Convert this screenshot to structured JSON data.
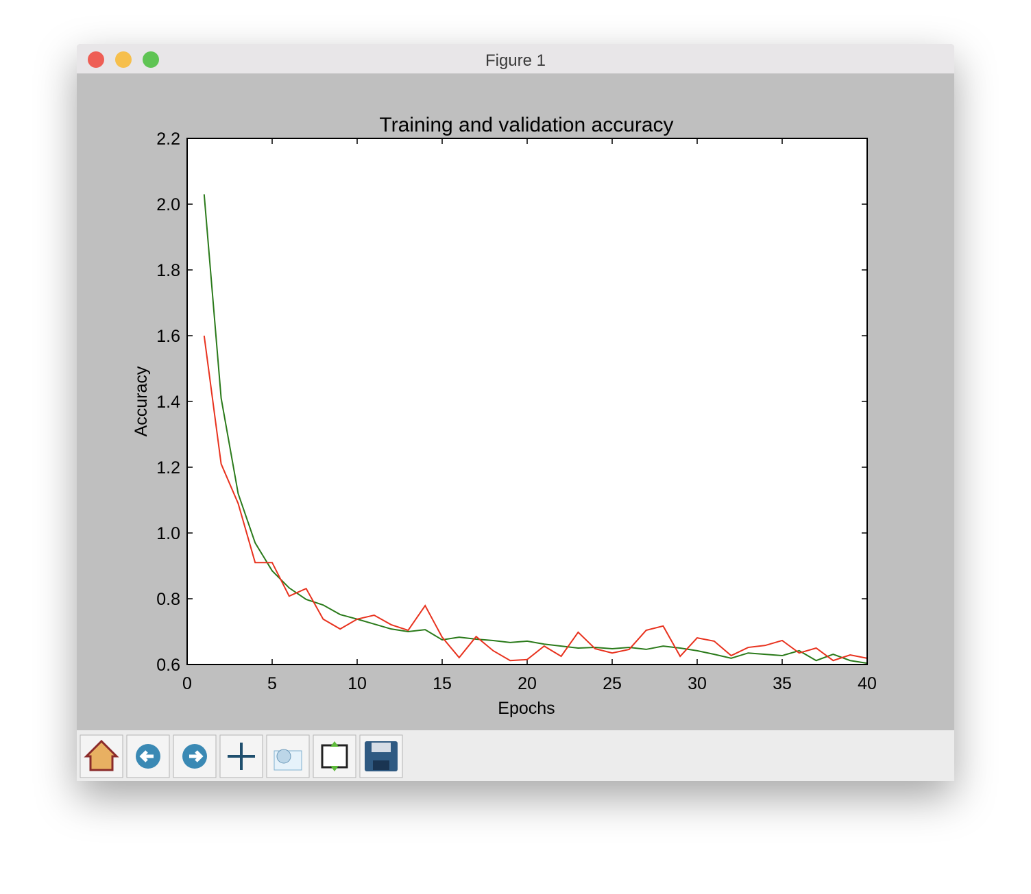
{
  "window": {
    "title": "Figure 1"
  },
  "chart_data": {
    "type": "line",
    "title": "Training and validation accuracy",
    "x_label": "Epochs",
    "y_label": "Accuracy",
    "x": [
      1,
      2,
      3,
      4,
      5,
      6,
      7,
      8,
      9,
      10,
      11,
      12,
      13,
      14,
      15,
      16,
      17,
      18,
      19,
      20,
      21,
      22,
      23,
      24,
      25,
      26,
      27,
      28,
      29,
      30,
      31,
      32,
      33,
      34,
      35,
      36,
      37,
      38,
      39,
      40
    ],
    "series": [
      {
        "color": "#2a7a1a",
        "values": [
          2.03,
          1.41,
          1.12,
          0.97,
          0.885,
          0.833,
          0.798,
          0.781,
          0.752,
          0.738,
          0.723,
          0.708,
          0.7,
          0.706,
          0.675,
          0.683,
          0.677,
          0.673,
          0.667,
          0.671,
          0.662,
          0.656,
          0.65,
          0.652,
          0.648,
          0.652,
          0.646,
          0.656,
          0.65,
          0.642,
          0.631,
          0.619,
          0.635,
          0.631,
          0.627,
          0.642,
          0.612,
          0.631,
          0.612,
          0.604
        ]
      },
      {
        "color": "#e8321e",
        "values": [
          1.6,
          1.21,
          1.09,
          0.91,
          0.91,
          0.808,
          0.831,
          0.738,
          0.708,
          0.738,
          0.75,
          0.721,
          0.704,
          0.779,
          0.683,
          0.621,
          0.685,
          0.642,
          0.612,
          0.615,
          0.656,
          0.625,
          0.698,
          0.648,
          0.635,
          0.646,
          0.704,
          0.717,
          0.625,
          0.681,
          0.671,
          0.627,
          0.652,
          0.658,
          0.673,
          0.635,
          0.65,
          0.612,
          0.629,
          0.619
        ]
      }
    ],
    "xlim": [
      0,
      40
    ],
    "xticks": [
      0,
      5,
      10,
      15,
      20,
      25,
      30,
      35,
      40
    ],
    "ylim": [
      0.6,
      2.2
    ],
    "yticks": [
      0.6,
      0.8,
      {
        "value": 1,
        "label": "1.0"
      },
      1.2,
      1.4,
      1.6,
      1.8,
      {
        "value": 2,
        "label": "2.0"
      },
      2.2
    ]
  }
}
